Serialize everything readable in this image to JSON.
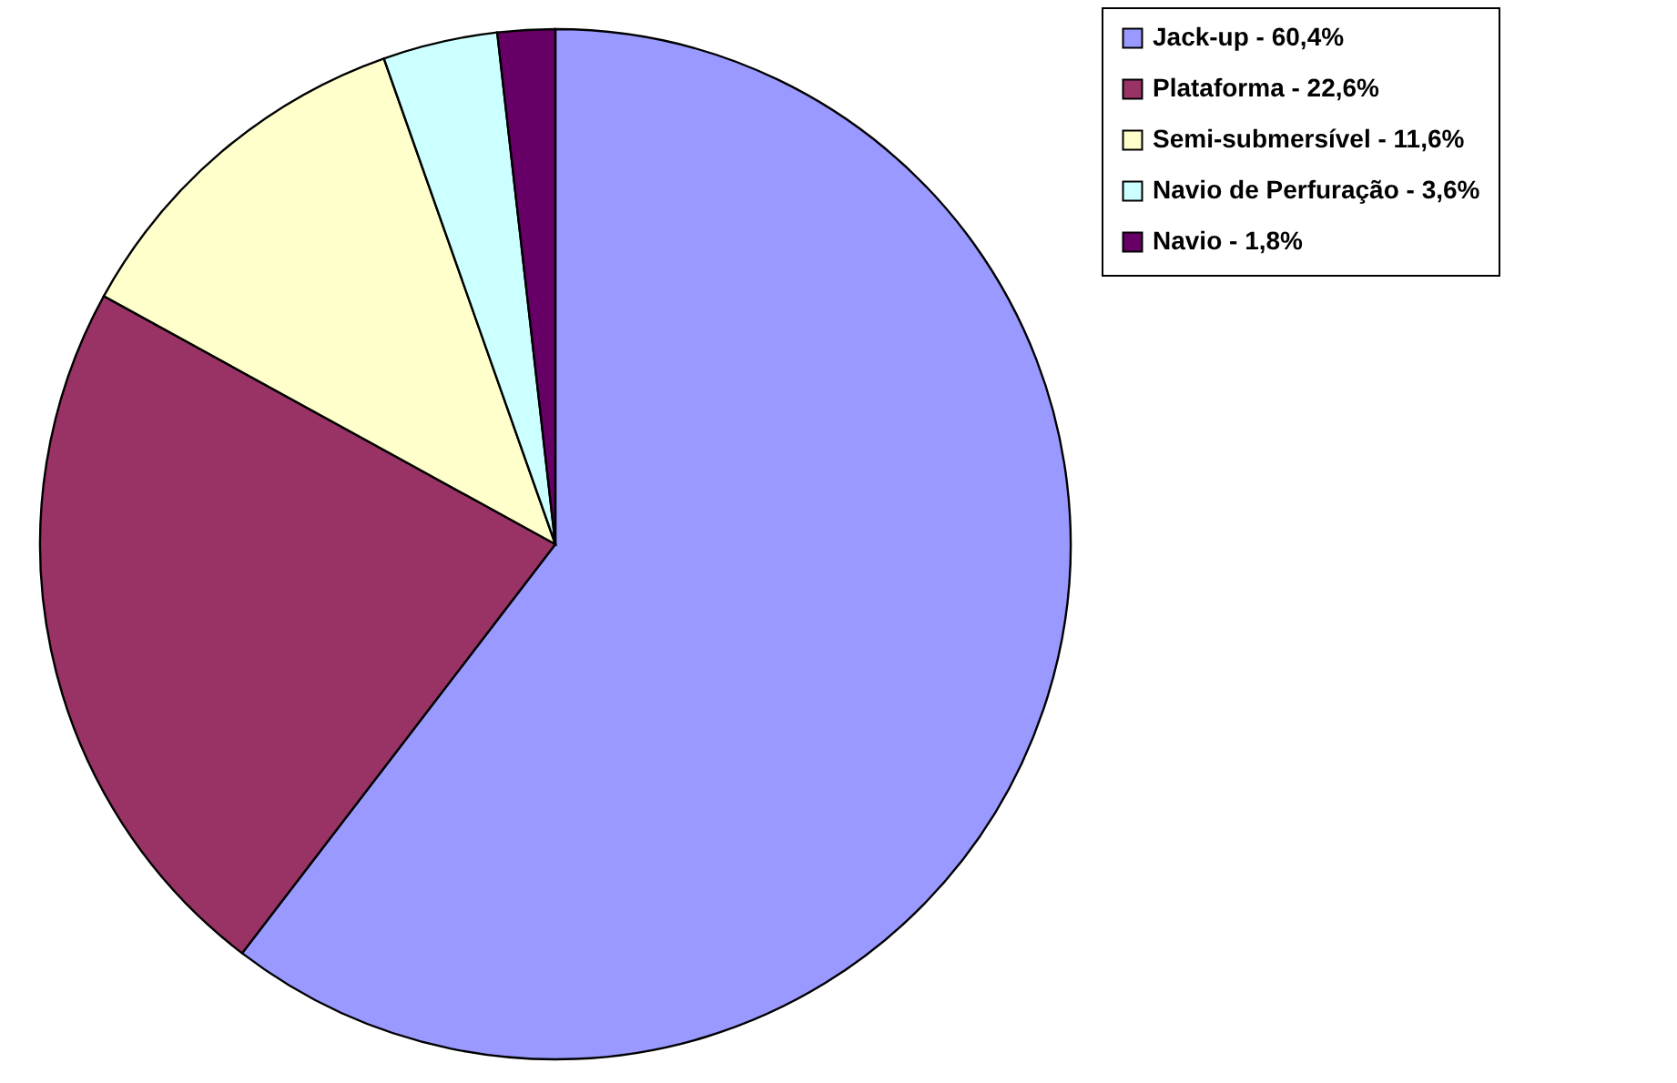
{
  "chart_data": {
    "type": "pie",
    "categories": [
      "Jack-up - 60,4%",
      "Plataforma - 22,6%",
      "Semi-submersível - 11,6%",
      "Navio de Perfuração - 3,6%",
      "Navio - 1,8%"
    ],
    "values": [
      60.4,
      22.6,
      11.6,
      3.6,
      1.8
    ],
    "colors": [
      "#9999ff",
      "#993366",
      "#ffffcc",
      "#ccffff",
      "#660066"
    ],
    "legend": "right"
  }
}
